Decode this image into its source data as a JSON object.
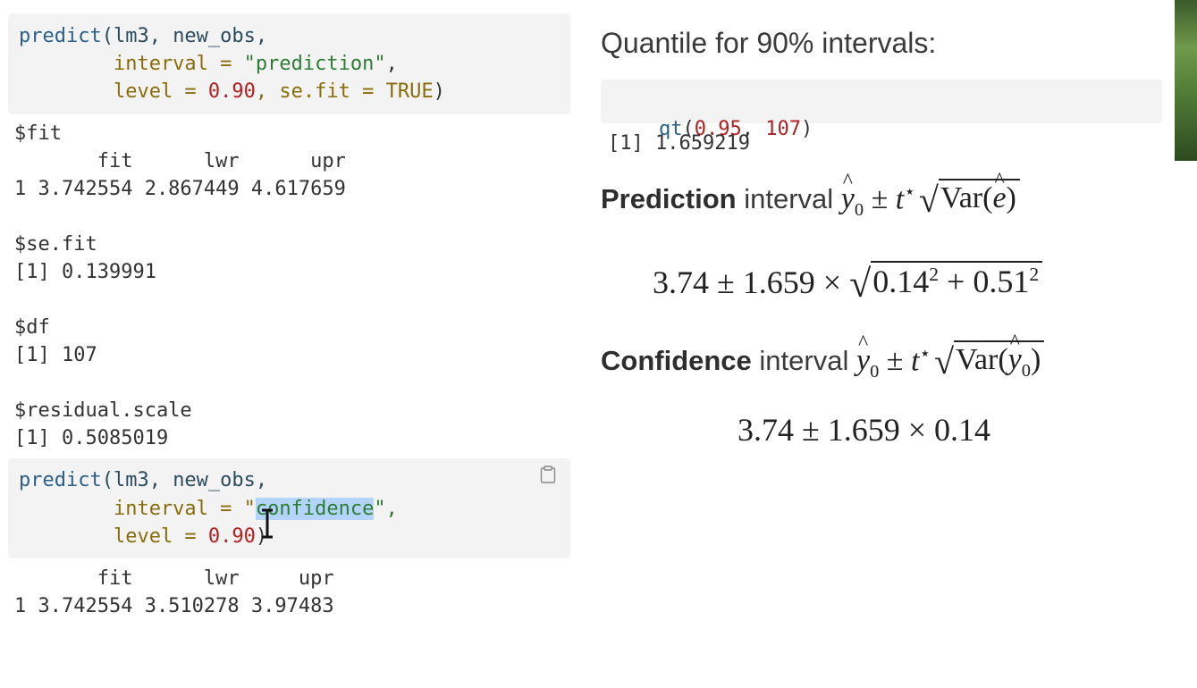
{
  "left": {
    "block1": {
      "lines": [
        [
          {
            "t": "predict",
            "c": "fn"
          },
          {
            "t": "(lm3, new_obs,",
            "c": "tx"
          }
        ],
        [
          {
            "t": "        interval = ",
            "c": "kw"
          },
          {
            "t": "\"prediction\"",
            "c": "str"
          },
          {
            "t": ",",
            "c": "pun"
          }
        ],
        [
          {
            "t": "        level = ",
            "c": "kw"
          },
          {
            "t": "0.90",
            "c": "num"
          },
          {
            "t": ", se.fit = ",
            "c": "kw"
          },
          {
            "t": "TRUE",
            "c": "kw"
          },
          {
            "t": ")",
            "c": "pun"
          }
        ]
      ]
    },
    "output1": [
      "$fit",
      "       fit      lwr      upr",
      "1 3.742554 2.867449 4.617659",
      "",
      "$se.fit",
      "[1] 0.139991",
      "",
      "$df",
      "[1] 107",
      "",
      "$residual.scale",
      "[1] 0.5085019"
    ],
    "block2": {
      "lines": [
        [
          {
            "t": "predict",
            "c": "fn"
          },
          {
            "t": "(lm3, new_obs,",
            "c": "tx"
          }
        ],
        [
          {
            "t": "        interval = \"",
            "c": "kw"
          },
          {
            "t": "confidence",
            "c": "sel"
          },
          {
            "t": "\",",
            "c": "str"
          }
        ],
        [
          {
            "t": "        level = ",
            "c": "kw"
          },
          {
            "t": "0.90",
            "c": "num"
          },
          {
            "t": ")",
            "c": "pun"
          }
        ]
      ],
      "copy_icon": "clipboard-icon"
    },
    "output2": [
      "       fit      lwr     upr",
      "1 3.742554 3.510278 3.97483"
    ]
  },
  "right": {
    "heading": "Quantile for 90% intervals:",
    "qt_code": {
      "fn": "qt",
      "open": "(",
      "arg1": "0.95",
      "sep": ", ",
      "arg2": "107",
      "close": ")"
    },
    "qt_output": "[1] 1.659219",
    "prediction": {
      "bold": "Prediction",
      "rest": " interval ",
      "formula": "3.74 ± 1.659 × √(0.14² + 0.51²)",
      "f_left": "3.74 ± 1.659 × ",
      "f_a": "0.14",
      "f_plus": " + ",
      "f_b": "0.51",
      "exp": "2"
    },
    "confidence": {
      "bold": "Confidence",
      "rest": " interval ",
      "formula": "3.74 ± 1.659 × 0.14"
    },
    "math": {
      "y": "y",
      "sub0": "0",
      "pm": " ± ",
      "t": "t",
      "star": "⋆",
      "var": "Var",
      "e": "e",
      "lp": "(",
      "rp": ")"
    }
  },
  "colors": {
    "code_bg": "#f3f3f3",
    "selection": "#b3d4fc",
    "number": "#b32020",
    "string": "#2e7d32",
    "function": "#2a5f8a"
  }
}
